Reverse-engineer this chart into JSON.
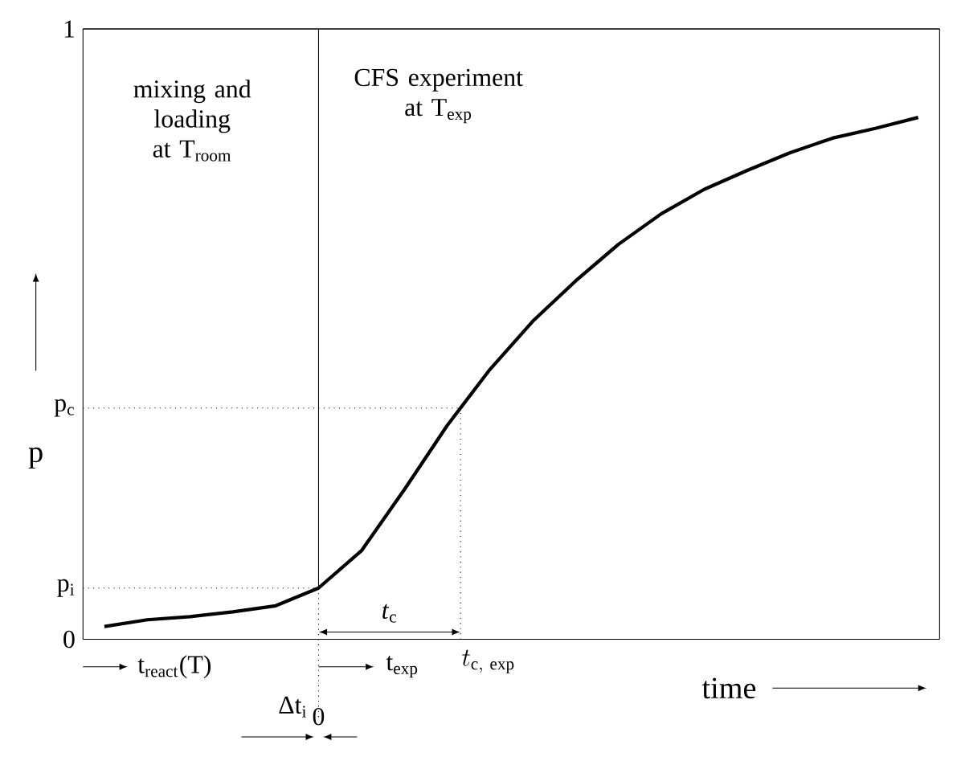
{
  "chart_data": {
    "type": "line",
    "categories": [
      null,
      null,
      null,
      null,
      null,
      null,
      null,
      null,
      null,
      null,
      null,
      null,
      null,
      null,
      null,
      null,
      null,
      null,
      null,
      null
    ],
    "values": [
      0.021,
      0.032,
      0.037,
      0.045,
      0.055,
      0.084,
      0.145,
      0.245,
      0.35,
      0.442,
      0.521,
      0.587,
      0.647,
      0.697,
      0.737,
      0.768,
      0.797,
      0.821,
      0.837,
      0.855
    ],
    "color": "#000000",
    "line_style": "solid",
    "ylim": [
      0,
      1
    ],
    "yticks": [
      0,
      {
        "value": 0.084,
        "label": "p$_{i}$"
      },
      {
        "value": 0.379,
        "label": "p$_{c}$"
      },
      1
    ],
    "ylabel": "p",
    "xlabel": "time",
    "tick_labels": "y",
    "ref_lines": [
      {
        "axis": "y",
        "value": 0.084,
        "line_style": "dotted"
      },
      {
        "axis": "y",
        "value": 0.379,
        "line_style": "dotted"
      }
    ],
    "annotations": [
      "mixing and loading at T$_{room}$",
      "CFS experiment at T$_{exp}$",
      "t$_{react}$(T)",
      "Δt$_{i}$",
      "t$_{exp}$",
      "*t*$_{c}$",
      "t_{\\mathrm{c,\\ exp}}",
      "0"
    ]
  }
}
